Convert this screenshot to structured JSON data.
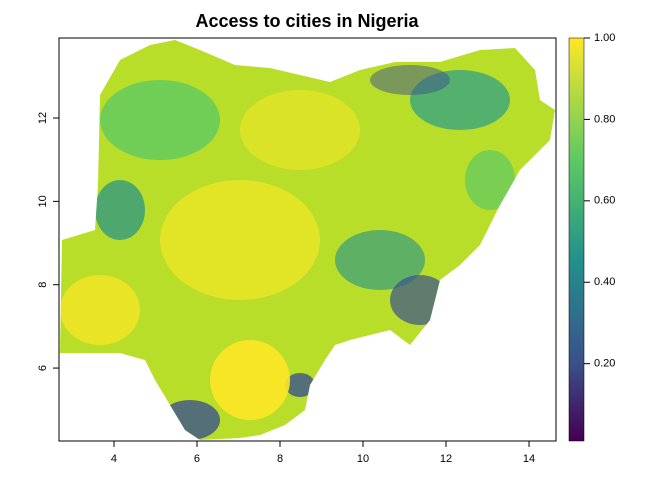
{
  "chart_data": {
    "type": "raster",
    "title": "Access to cities in Nigeria",
    "xlim": [
      2.675,
      14.65
    ],
    "xticks": [
      4,
      6,
      8,
      10,
      12,
      14
    ],
    "ylim": [
      4.25,
      13.92
    ],
    "yticks": [
      6,
      8,
      10,
      12
    ],
    "zlim": [
      0.01,
      1
    ],
    "zticks": [
      {
        "value": 0.2,
        "label": "0.20"
      },
      {
        "value": 0.4,
        "label": "0.40"
      },
      {
        "value": 0.6,
        "label": "0.60"
      },
      {
        "value": 0.8,
        "label": "0.80"
      },
      {
        "value": 1,
        "label": "1.00"
      }
    ]
  }
}
